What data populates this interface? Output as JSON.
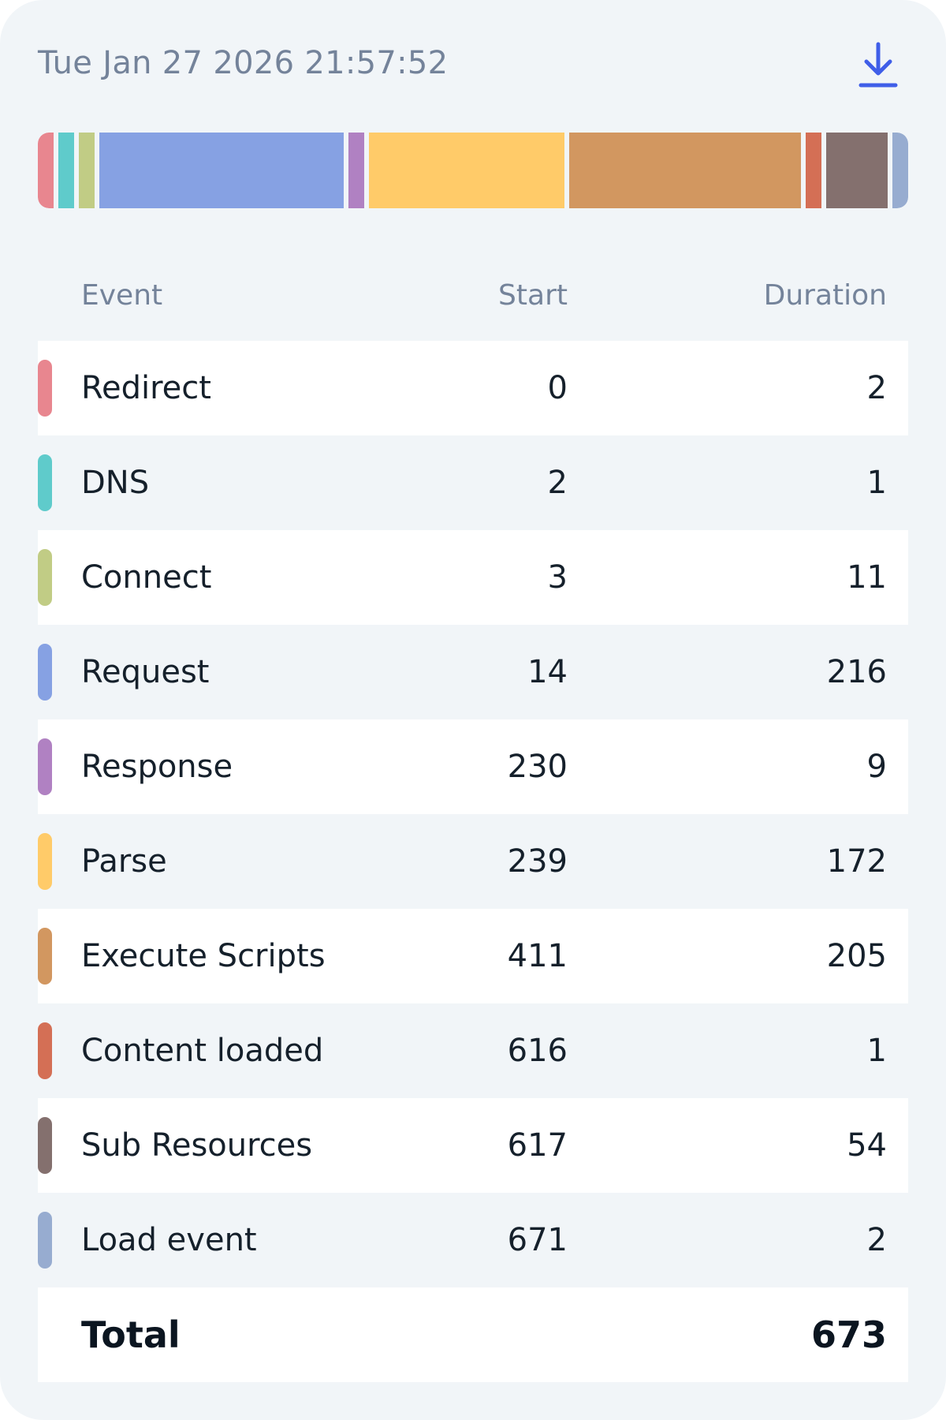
{
  "header": {
    "timestamp": "Tue Jan 27 2026 21:57:52",
    "download_icon": "download-icon",
    "accent_color": "#3f5ee8"
  },
  "table": {
    "columns": {
      "event": "Event",
      "start": "Start",
      "duration": "Duration"
    },
    "rows": [
      {
        "event": "Redirect",
        "start": "0",
        "duration": "2",
        "color": "#e8868f"
      },
      {
        "event": "DNS",
        "start": "2",
        "duration": "1",
        "color": "#5fcbcb"
      },
      {
        "event": "Connect",
        "start": "3",
        "duration": "11",
        "color": "#c1cc85"
      },
      {
        "event": "Request",
        "start": "14",
        "duration": "216",
        "color": "#86a1e3"
      },
      {
        "event": "Response",
        "start": "230",
        "duration": "9",
        "color": "#b081c2"
      },
      {
        "event": "Parse",
        "start": "239",
        "duration": "172",
        "color": "#ffcb69"
      },
      {
        "event": "Execute Scripts",
        "start": "411",
        "duration": "205",
        "color": "#d29760"
      },
      {
        "event": "Content loaded",
        "start": "616",
        "duration": "1",
        "color": "#d46f55"
      },
      {
        "event": "Sub Resources",
        "start": "617",
        "duration": "54",
        "color": "#84706e"
      },
      {
        "event": "Load event",
        "start": "671",
        "duration": "2",
        "color": "#97acd0"
      }
    ],
    "total": {
      "label": "Total",
      "value": "673"
    }
  }
}
